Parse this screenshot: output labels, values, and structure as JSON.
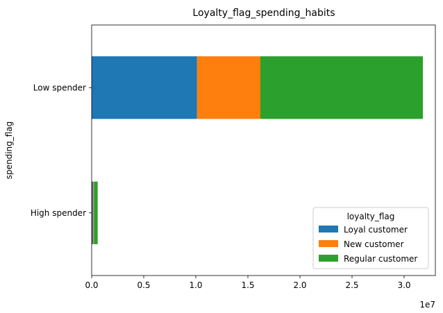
{
  "chart_data": {
    "type": "bar",
    "orientation": "horizontal",
    "stacked": true,
    "title": "Loyalty_flag_spending_habits",
    "xlabel": "",
    "ylabel": "spending_flag",
    "x_offset_label": "1e7",
    "categories": [
      "High spender",
      "Low spender"
    ],
    "series": [
      {
        "name": "Loyal customer",
        "color": "#1f77b4",
        "values": [
          150000,
          10120000
        ]
      },
      {
        "name": "New customer",
        "color": "#ff7f0e",
        "values": [
          80000,
          6080000
        ]
      },
      {
        "name": "Regular customer",
        "color": "#2ca02c",
        "values": [
          350000,
          15600000
        ]
      }
    ],
    "xlim": [
      0,
      33000000
    ],
    "xticks": [
      {
        "value": 0,
        "label": "0.0"
      },
      {
        "value": 5000000,
        "label": "0.5"
      },
      {
        "value": 10000000,
        "label": "1.0"
      },
      {
        "value": 15000000,
        "label": "1.5"
      },
      {
        "value": 20000000,
        "label": "2.0"
      },
      {
        "value": 25000000,
        "label": "2.5"
      },
      {
        "value": 30000000,
        "label": "3.0"
      }
    ],
    "grid": false,
    "legend": {
      "title": "loyalty_flag",
      "placement": "lower right"
    }
  }
}
